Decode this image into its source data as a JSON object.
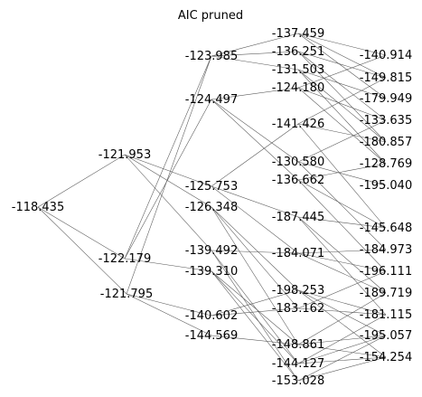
{
  "title": "AIC pruned",
  "colors": {
    "edge": "#555555",
    "text": "#000000",
    "background": "#ffffff"
  },
  "nodes": [
    {
      "id": "n0",
      "label": "-118.435"
    },
    {
      "id": "a1",
      "label": "-121.953"
    },
    {
      "id": "a2",
      "label": "-122.179"
    },
    {
      "id": "a3",
      "label": "-121.795"
    },
    {
      "id": "b1",
      "label": "-123.985"
    },
    {
      "id": "b2",
      "label": "-124.497"
    },
    {
      "id": "b3",
      "label": "-125.753"
    },
    {
      "id": "b4",
      "label": "-126.348"
    },
    {
      "id": "b5",
      "label": "-139.492"
    },
    {
      "id": "b6",
      "label": "-139.310"
    },
    {
      "id": "b7",
      "label": "-140.602"
    },
    {
      "id": "b8",
      "label": "-144.569"
    },
    {
      "id": "c1",
      "label": "-137.459"
    },
    {
      "id": "c2",
      "label": "-136.251"
    },
    {
      "id": "c3",
      "label": "-131.503"
    },
    {
      "id": "c4",
      "label": "-124.180"
    },
    {
      "id": "c5",
      "label": "-141.426"
    },
    {
      "id": "c6",
      "label": "-130.580"
    },
    {
      "id": "c7",
      "label": "-136.662"
    },
    {
      "id": "c8",
      "label": "-187.445"
    },
    {
      "id": "c9",
      "label": "-184.071"
    },
    {
      "id": "c10",
      "label": "-198.253"
    },
    {
      "id": "c11",
      "label": "-183.162"
    },
    {
      "id": "c12",
      "label": "-148.861"
    },
    {
      "id": "c13",
      "label": "-144.127"
    },
    {
      "id": "c14",
      "label": "-153.028"
    },
    {
      "id": "d1",
      "label": "-140.914"
    },
    {
      "id": "d2",
      "label": "-149.815"
    },
    {
      "id": "d3",
      "label": "-179.949"
    },
    {
      "id": "d4",
      "label": "-133.635"
    },
    {
      "id": "d5",
      "label": "-180.857"
    },
    {
      "id": "d6",
      "label": "-128.769"
    },
    {
      "id": "d7",
      "label": "-195.040"
    },
    {
      "id": "d8",
      "label": "-145.648"
    },
    {
      "id": "d9",
      "label": "-184.973"
    },
    {
      "id": "d10",
      "label": "-196.111"
    },
    {
      "id": "d11",
      "label": "-189.719"
    },
    {
      "id": "d12",
      "label": "-181.115"
    },
    {
      "id": "d13",
      "label": "-195.057"
    },
    {
      "id": "d14",
      "label": "-154.254"
    }
  ],
  "edges": [
    [
      "n0",
      "a1"
    ],
    [
      "n0",
      "a2"
    ],
    [
      "n0",
      "a3"
    ],
    [
      "a1",
      "b3"
    ],
    [
      "a1",
      "b4"
    ],
    [
      "a1",
      "b5"
    ],
    [
      "a2",
      "b1"
    ],
    [
      "a2",
      "b2"
    ],
    [
      "a2",
      "b6"
    ],
    [
      "a3",
      "b1"
    ],
    [
      "a3",
      "b7"
    ],
    [
      "a3",
      "b8"
    ],
    [
      "b1",
      "c1"
    ],
    [
      "b1",
      "c2"
    ],
    [
      "b1",
      "c3"
    ],
    [
      "b2",
      "c4"
    ],
    [
      "b2",
      "c6"
    ],
    [
      "b2",
      "c7"
    ],
    [
      "b3",
      "c8"
    ],
    [
      "b3",
      "c5"
    ],
    [
      "b3",
      "c9"
    ],
    [
      "b4",
      "c10"
    ],
    [
      "b4",
      "c11"
    ],
    [
      "b4",
      "c12"
    ],
    [
      "b5",
      "c13"
    ],
    [
      "b5",
      "c14"
    ],
    [
      "b5",
      "c9"
    ],
    [
      "b6",
      "c12"
    ],
    [
      "b6",
      "c13"
    ],
    [
      "b6",
      "c14"
    ],
    [
      "b7",
      "c10"
    ],
    [
      "b7",
      "c11"
    ],
    [
      "b8",
      "c12"
    ],
    [
      "c1",
      "d1"
    ],
    [
      "c1",
      "d2"
    ],
    [
      "c1",
      "d3"
    ],
    [
      "c2",
      "d2"
    ],
    [
      "c2",
      "d4"
    ],
    [
      "c2",
      "d5"
    ],
    [
      "c3",
      "d3"
    ],
    [
      "c3",
      "d6"
    ],
    [
      "c3",
      "d5"
    ],
    [
      "c4",
      "d1"
    ],
    [
      "c4",
      "d4"
    ],
    [
      "c4",
      "d6"
    ],
    [
      "c5",
      "d2"
    ],
    [
      "c5",
      "d5"
    ],
    [
      "c5",
      "d8"
    ],
    [
      "c6",
      "d4"
    ],
    [
      "c6",
      "d7"
    ],
    [
      "c6",
      "d9"
    ],
    [
      "c7",
      "d6"
    ],
    [
      "c7",
      "d8"
    ],
    [
      "c7",
      "d10"
    ],
    [
      "c8",
      "d8"
    ],
    [
      "c8",
      "d11"
    ],
    [
      "c8",
      "d12"
    ],
    [
      "c9",
      "d9"
    ],
    [
      "c9",
      "d10"
    ],
    [
      "c9",
      "d11"
    ],
    [
      "c10",
      "d12"
    ],
    [
      "c10",
      "d13"
    ],
    [
      "c10",
      "d14"
    ],
    [
      "c11",
      "d10"
    ],
    [
      "c11",
      "d12"
    ],
    [
      "c12",
      "d11"
    ],
    [
      "c12",
      "d13"
    ],
    [
      "c12",
      "d14"
    ],
    [
      "c13",
      "d12"
    ],
    [
      "c13",
      "d13"
    ],
    [
      "c13",
      "d14"
    ],
    [
      "c14",
      "d13"
    ],
    [
      "c14",
      "d14"
    ]
  ]
}
